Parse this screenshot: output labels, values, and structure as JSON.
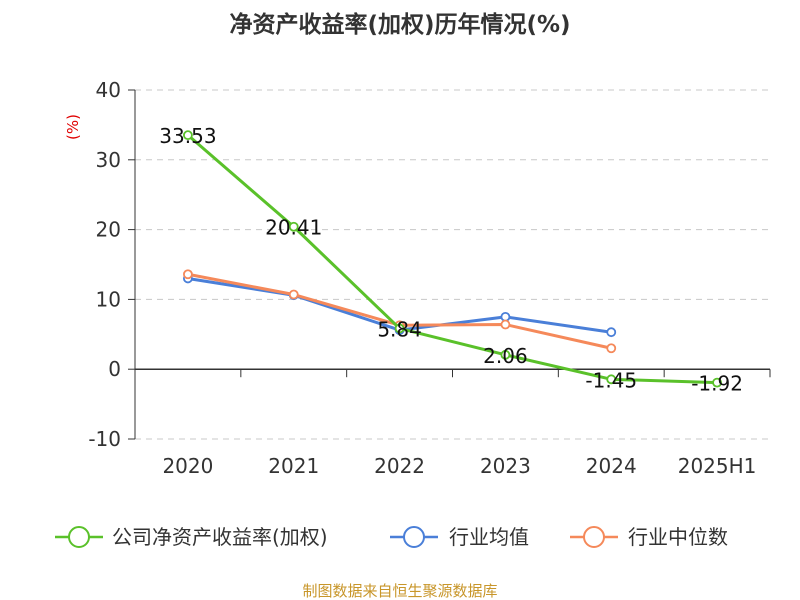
{
  "chart_data": {
    "type": "line",
    "title": "净资产收益率(加权)历年情况(%)",
    "ylabel": "(%)",
    "categories": [
      "2020",
      "2021",
      "2022",
      "2023",
      "2024",
      "2025H1"
    ],
    "ylim": [
      -10,
      40
    ],
    "yticks": [
      -10,
      0,
      10,
      20,
      30,
      40
    ],
    "grid": true,
    "legend_position": "bottom",
    "series": [
      {
        "name": "公司净资产收益率(加权)",
        "color": "#5ac12a",
        "values": [
          33.53,
          20.41,
          5.84,
          2.06,
          -1.45,
          -1.92
        ],
        "data_labels": [
          "33.53",
          "20.41",
          "5.84",
          "2.06",
          "-1.45",
          "-1.92"
        ]
      },
      {
        "name": "行业均值",
        "color": "#4a7fd8",
        "values": [
          13.0,
          10.6,
          5.6,
          7.5,
          5.3,
          null
        ]
      },
      {
        "name": "行业中位数",
        "color": "#f5895a",
        "values": [
          13.6,
          10.7,
          6.3,
          6.4,
          3.0,
          null
        ]
      }
    ]
  },
  "source": "制图数据来自恒生聚源数据库"
}
